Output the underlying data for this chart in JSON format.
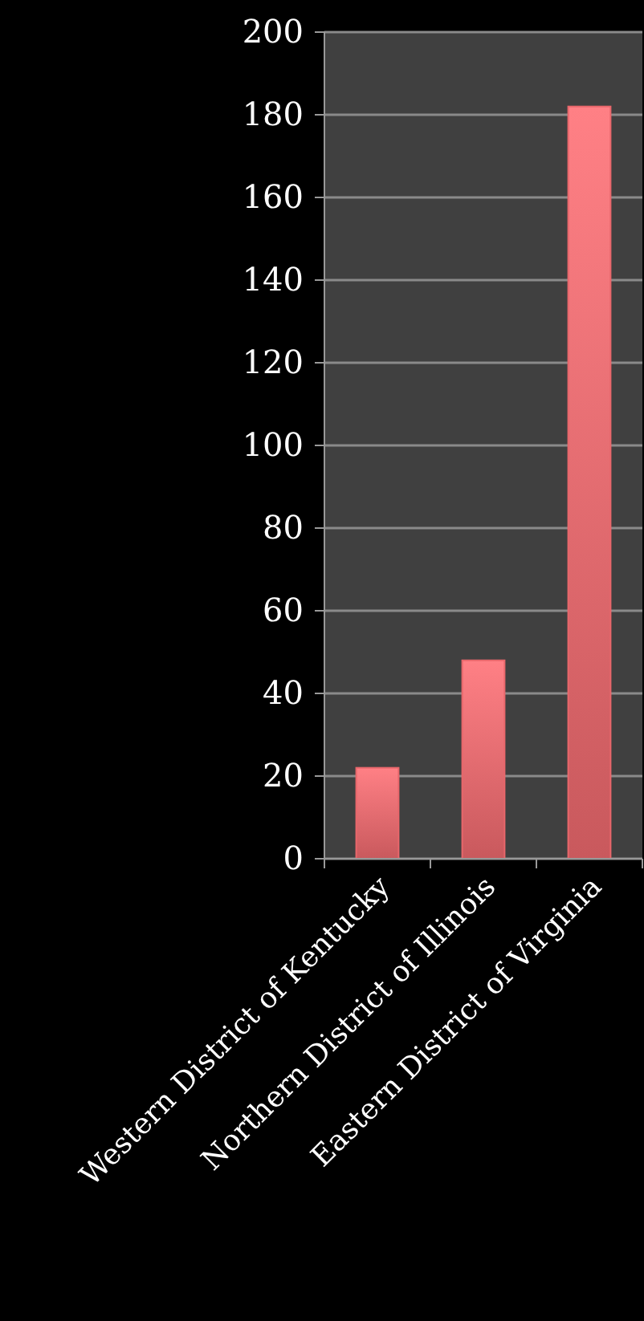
{
  "chart_data": {
    "type": "bar",
    "categories": [
      "Western District of Kentucky",
      "Northern District of Illinois",
      "Eastern District of Virginia"
    ],
    "values": [
      22,
      48,
      182
    ],
    "color": "#e8676b",
    "ylim": [
      0,
      200
    ],
    "yticks": [
      0,
      20,
      40,
      60,
      80,
      100,
      120,
      140,
      160,
      180,
      200
    ],
    "grid": "y"
  }
}
